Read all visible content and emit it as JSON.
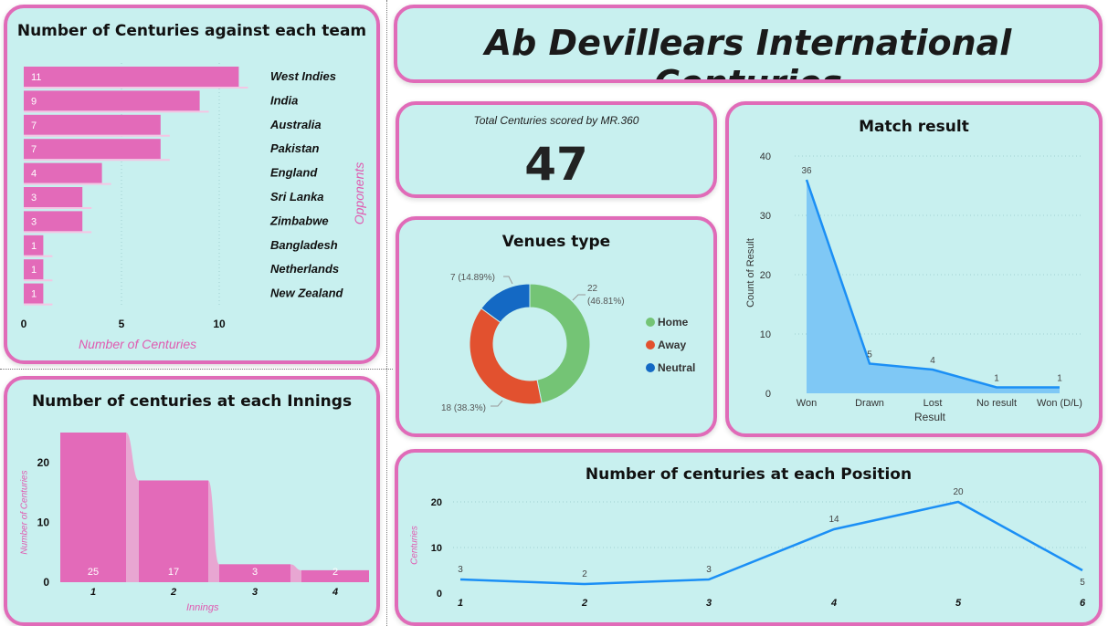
{
  "title": "Ab Devillears International Centuries",
  "kpi": {
    "label": "Total Centuries scored by MR.360",
    "value": "47"
  },
  "colors": {
    "bar": "#e36ab9",
    "line": "#1b8ff5",
    "area": "#7fc8f5",
    "home": "#74c475",
    "away": "#e2512f",
    "neutral": "#1469c4",
    "accent_text": "#e05ab0"
  },
  "teams_chart": {
    "title": "Number of Centuries against each team",
    "xlabel": "Number of Centuries",
    "ylabel": "Opponents",
    "x_ticks": [
      "0",
      "5",
      "10"
    ]
  },
  "innings_chart": {
    "title": "Number of centuries at each Innings",
    "xlabel": "Innings",
    "ylabel": "Number of Centuries",
    "y_ticks": [
      "0",
      "10",
      "20"
    ]
  },
  "venues_chart": {
    "title": "Venues type",
    "legend": [
      "Home",
      "Away",
      "Neutral"
    ],
    "slice_labels": [
      "22",
      "(46.81%)",
      "18 (38.3%)",
      "7 (14.89%)"
    ]
  },
  "result_chart": {
    "title": "Match result",
    "xlabel": "Result",
    "ylabel": "Count of Result",
    "y_ticks": [
      "0",
      "10",
      "20",
      "30",
      "40"
    ]
  },
  "position_chart": {
    "title": "Number of centuries at each Position",
    "ylabel": "Centuries",
    "y_ticks": [
      "0",
      "10",
      "20"
    ]
  },
  "chart_data": [
    {
      "type": "bar",
      "orientation": "horizontal",
      "title": "Number of Centuries against each team",
      "xlabel": "Number of Centuries",
      "ylabel": "Opponents",
      "categories": [
        "West Indies",
        "India",
        "Australia",
        "Pakistan",
        "England",
        "Sri Lanka",
        "Zimbabwe",
        "Bangladesh",
        "Netherlands",
        "New Zealand"
      ],
      "values": [
        11,
        9,
        7,
        7,
        4,
        3,
        3,
        1,
        1,
        1
      ],
      "xlim": [
        0,
        13
      ],
      "grid": true
    },
    {
      "type": "bar",
      "title": "Number of centuries at each Innings",
      "xlabel": "Innings",
      "ylabel": "Number of Centuries",
      "categories": [
        "1",
        "2",
        "3",
        "4"
      ],
      "values": [
        25,
        17,
        3,
        2
      ],
      "ylim": [
        0,
        25
      ]
    },
    {
      "type": "pie",
      "title": "Venues type",
      "categories": [
        "Home",
        "Away",
        "Neutral"
      ],
      "values": [
        22,
        18,
        7
      ],
      "percentages": [
        46.81,
        38.3,
        14.89
      ],
      "legend": "right"
    },
    {
      "type": "area",
      "title": "Match result",
      "xlabel": "Result",
      "ylabel": "Count of Result",
      "categories": [
        "Won",
        "Drawn",
        "Lost",
        "No result",
        "Won (D/L)"
      ],
      "values": [
        36,
        5,
        4,
        1,
        1
      ],
      "ylim": [
        0,
        40
      ],
      "grid": true
    },
    {
      "type": "line",
      "title": "Number of centuries at each Position",
      "ylabel": "Centuries",
      "categories": [
        "1",
        "2",
        "3",
        "4",
        "5",
        "6"
      ],
      "values": [
        3,
        2,
        3,
        14,
        20,
        5
      ],
      "ylim": [
        0,
        22
      ],
      "grid": true
    }
  ]
}
